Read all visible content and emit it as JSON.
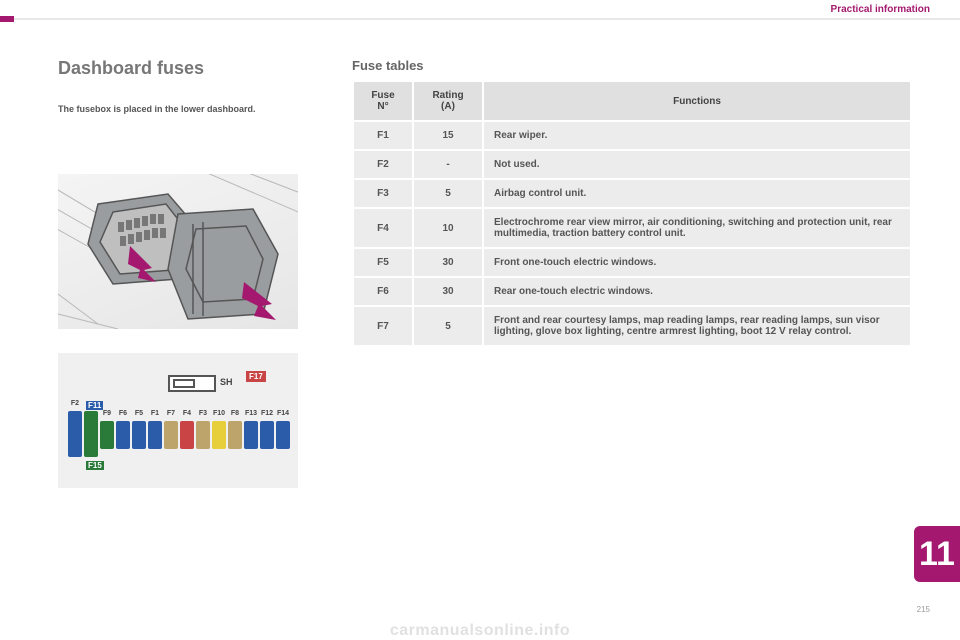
{
  "header": {
    "section_label": "Practical information"
  },
  "left": {
    "heading": "Dashboard fuses",
    "subtext": "The fusebox is placed in the lower dashboard."
  },
  "tables_heading": "Fuse tables",
  "table": {
    "head": {
      "fuse": "Fuse\nN°",
      "rating": "Rating\n(A)",
      "functions": "Functions"
    },
    "rows": [
      {
        "n": "F1",
        "a": "15",
        "f": "Rear wiper."
      },
      {
        "n": "F2",
        "a": "-",
        "f": "Not used."
      },
      {
        "n": "F3",
        "a": "5",
        "f": "Airbag control unit."
      },
      {
        "n": "F4",
        "a": "10",
        "f": "Electrochrome rear view mirror, air conditioning, switching and protection unit, rear multimedia, traction battery control unit."
      },
      {
        "n": "F5",
        "a": "30",
        "f": "Front one-touch electric windows."
      },
      {
        "n": "F6",
        "a": "30",
        "f": "Rear one-touch electric windows."
      },
      {
        "n": "F7",
        "a": "5",
        "f": "Front and rear courtesy lamps, map reading lamps, rear reading lamps, sun visor lighting, glove box lighting, centre armrest lighting, boot 12 V relay control."
      }
    ]
  },
  "fusemap": {
    "sh_label": "SH",
    "f17_label": "F17",
    "f11_label": "F11",
    "f15_label": "F15",
    "slots": [
      {
        "label": "F2",
        "color": "#2a5caa",
        "tall": true
      },
      {
        "label": "",
        "color": "#2a7a3a",
        "tall": true
      },
      {
        "label": "F9",
        "color": "#2a7a3a"
      },
      {
        "label": "F6",
        "color": "#2a5caa"
      },
      {
        "label": "F5",
        "color": "#2a5caa"
      },
      {
        "label": "F1",
        "color": "#2a5caa"
      },
      {
        "label": "F7",
        "color": "#bda46a"
      },
      {
        "label": "F4",
        "color": "#c94545"
      },
      {
        "label": "F3",
        "color": "#bda46a"
      },
      {
        "label": "F10",
        "color": "#e6cf3a"
      },
      {
        "label": "F8",
        "color": "#bda46a"
      },
      {
        "label": "F13",
        "color": "#2a5caa"
      },
      {
        "label": "F12",
        "color": "#2a5caa"
      },
      {
        "label": "F14",
        "color": "#2a5caa"
      }
    ],
    "label_color": "#444",
    "bg": "#f0f0f0"
  },
  "diagram1": {
    "panel_fill": "#9a9d9f",
    "panel_stroke": "#555",
    "arrow_fill": "#a4196f",
    "bg_stroke": "#b8b8b8"
  },
  "pagetab": {
    "num": "11",
    "bg": "#a4196f"
  },
  "footer": {
    "pagecount": "215",
    "watermark": "carmanualsonline.info"
  },
  "colors": {
    "accent": "#a4196f",
    "text": "#555",
    "table_bg": "#ececec",
    "table_head_bg": "#e0e0e0"
  }
}
